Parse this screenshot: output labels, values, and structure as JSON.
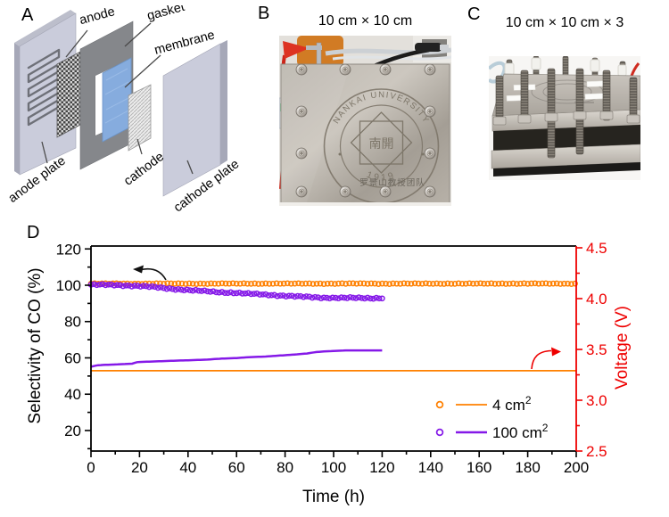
{
  "figure": {
    "panels": {
      "a": {
        "label": "A",
        "component_labels": {
          "anode": "anode",
          "gasket": "gasket",
          "membrane": "membrane",
          "anode_plate": "anode plate",
          "cathode": "cathode",
          "cathode_plate": "cathode plate"
        }
      },
      "b": {
        "label": "B",
        "title": "10 cm × 10 cm",
        "seal_text_top": "NANKAI UNIVERSITY",
        "seal_year": "1919",
        "seal_center": "南開",
        "caption": "罗景山教授团队"
      },
      "c": {
        "label": "C",
        "title": "10 cm × 10 cm × 3"
      },
      "d": {
        "label": "D"
      }
    }
  },
  "chart_data": {
    "type": "scatter+line (dual y-axis)",
    "xlabel": "Time (h)",
    "ylabel_left": "Selectivity of CO (%)",
    "ylabel_right": "Voltage (V)",
    "xlim": [
      0,
      200
    ],
    "ylim_left": [
      8.7,
      121.6
    ],
    "ylim_right": [
      2.5,
      4.5
    ],
    "x_ticks": {
      "major": [
        0,
        20,
        40,
        60,
        80,
        100,
        120,
        140,
        160,
        180,
        200
      ],
      "minor_step": 10
    },
    "y_left_ticks": {
      "major": [
        20,
        40,
        60,
        80,
        100,
        120
      ],
      "minor_step": 10
    },
    "y_right_ticks": {
      "major": [
        2.5,
        3.0,
        3.5,
        4.0,
        4.5
      ],
      "labels": [
        "2.5",
        "3.0",
        "3.5",
        "4.0",
        "4.5"
      ],
      "minor": [
        2.75,
        3.25,
        3.75,
        4.25
      ]
    },
    "axis_colors": {
      "left": "#000000",
      "bottom": "#000000",
      "top": "#000000",
      "right": "#ee0000"
    },
    "legend_position": "inside bottom-right",
    "series": [
      {
        "name": "4 cm2",
        "legend_label": {
          "text": "4 cm",
          "sup": "2"
        },
        "color": "#ff8000",
        "selectivity_pct": {
          "marker": "open-circle",
          "step_h": 1.5,
          "noise": 0.14,
          "points": [
            [
              0,
              100.9
            ],
            [
              200,
              100.9
            ]
          ]
        },
        "voltage_v": {
          "style": "solid",
          "width": 1.7,
          "points": [
            [
              0,
              3.29
            ],
            [
              200,
              3.29
            ]
          ]
        }
      },
      {
        "name": "100 cm2",
        "legend_label": {
          "text": "100 cm",
          "sup": "2"
        },
        "color": "#8519e8",
        "selectivity_pct": {
          "marker": "open-circle",
          "step_h": 1.2,
          "noise": 0.3,
          "points": [
            [
              0,
              100.3
            ],
            [
              10,
              100.1
            ],
            [
              20,
              99.6
            ],
            [
              25,
              99.1
            ],
            [
              30,
              98.4
            ],
            [
              35,
              97.9
            ],
            [
              40,
              97.4
            ],
            [
              45,
              96.9
            ],
            [
              50,
              96.4
            ],
            [
              55,
              96.1
            ],
            [
              60,
              95.8
            ],
            [
              65,
              95.3
            ],
            [
              70,
              95.0
            ],
            [
              75,
              94.6
            ],
            [
              80,
              94.2
            ],
            [
              85,
              93.8
            ],
            [
              90,
              93.5
            ],
            [
              95,
              93.2
            ],
            [
              100,
              93.1
            ],
            [
              105,
              93.0
            ],
            [
              110,
              93.0
            ],
            [
              115,
              92.9
            ],
            [
              120,
              93.0
            ]
          ]
        },
        "voltage_v": {
          "style": "solid",
          "width": 2.5,
          "points": [
            [
              0,
              3.33
            ],
            [
              3,
              3.345
            ],
            [
              8,
              3.35
            ],
            [
              13,
              3.355
            ],
            [
              17,
              3.36
            ],
            [
              19,
              3.375
            ],
            [
              24,
              3.38
            ],
            [
              30,
              3.385
            ],
            [
              36,
              3.39
            ],
            [
              42,
              3.395
            ],
            [
              48,
              3.4
            ],
            [
              54,
              3.41
            ],
            [
              60,
              3.415
            ],
            [
              66,
              3.425
            ],
            [
              72,
              3.43
            ],
            [
              78,
              3.44
            ],
            [
              84,
              3.45
            ],
            [
              89,
              3.46
            ],
            [
              93,
              3.475
            ],
            [
              96,
              3.48
            ],
            [
              100,
              3.485
            ],
            [
              105,
              3.49
            ],
            [
              112,
              3.49
            ],
            [
              120,
              3.49
            ]
          ]
        }
      }
    ]
  }
}
